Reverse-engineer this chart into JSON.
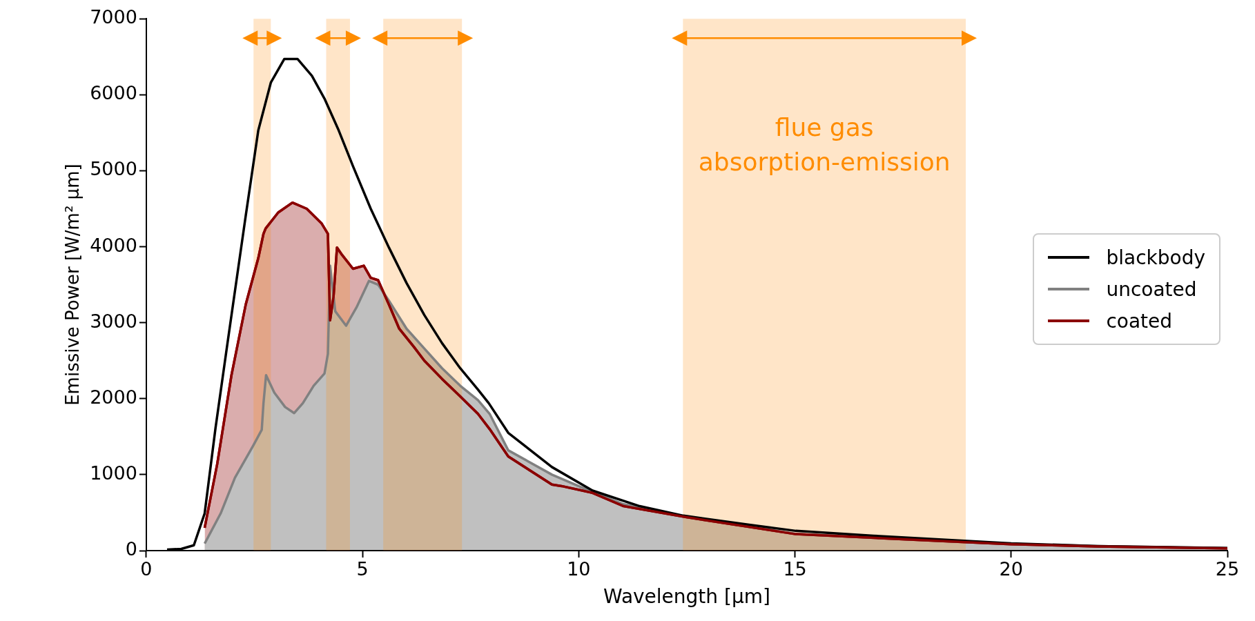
{
  "chart_data": {
    "type": "line",
    "xlabel": "Wavelength [µm]",
    "ylabel": "Emissive Power [W/m² µm]",
    "xlim": [
      0,
      25
    ],
    "ylim": [
      0,
      7000
    ],
    "xticks": [
      0,
      5,
      10,
      15,
      20,
      25
    ],
    "yticks": [
      0,
      1000,
      2000,
      3000,
      4000,
      5000,
      6000,
      7000
    ],
    "grid": false,
    "legend": "right",
    "marker": "none",
    "line_style": "solid",
    "series": [
      {
        "name": "blackbody",
        "type": "line",
        "color": "#000000",
        "x": [
          0.48,
          0.81,
          1.1,
          1.35,
          1.6,
          1.89,
          2.3,
          2.59,
          2.88,
          3.19,
          3.5,
          3.83,
          4.12,
          4.45,
          4.78,
          5.19,
          5.61,
          6.02,
          6.43,
          6.84,
          7.26,
          7.67,
          7.92,
          8.37,
          9.38,
          10.32,
          11.41,
          12.42,
          13.94,
          15.02,
          16.82,
          18.77,
          20,
          22,
          25
        ],
        "values": [
          14,
          23,
          70,
          490,
          1610,
          2780,
          4410,
          5530,
          6160,
          6470,
          6470,
          6250,
          5950,
          5530,
          5060,
          4500,
          3990,
          3520,
          3100,
          2730,
          2400,
          2120,
          1940,
          1550,
          1100,
          790,
          585,
          460,
          340,
          260,
          195,
          135,
          95,
          60,
          35
        ]
      },
      {
        "name": "uncoated",
        "type": "area",
        "color": "#808080",
        "x": [
          1.35,
          1.72,
          2.05,
          2.47,
          2.67,
          2.71,
          2.77,
          2.96,
          3.21,
          3.42,
          3.62,
          3.87,
          4.12,
          4.2,
          4.25,
          4.37,
          4.62,
          4.86,
          5.15,
          5.36,
          5.61,
          6.02,
          6.43,
          6.84,
          7.26,
          7.67,
          7.94,
          8.37,
          9.38,
          10.32,
          11.04,
          12.49,
          15.02,
          18.77,
          20,
          22,
          25
        ],
        "values": [
          93,
          490,
          960,
          1380,
          1590,
          1940,
          2310,
          2080,
          1890,
          1810,
          1940,
          2170,
          2330,
          2590,
          3750,
          3150,
          2960,
          3200,
          3550,
          3500,
          3290,
          2920,
          2660,
          2400,
          2170,
          1980,
          1800,
          1320,
          1000,
          770,
          610,
          445,
          220,
          118,
          88,
          58,
          32
        ]
      },
      {
        "name": "coated",
        "type": "area",
        "color": "#8b0000",
        "x": [
          1.35,
          1.64,
          1.97,
          2.3,
          2.59,
          2.71,
          2.76,
          3.05,
          3.38,
          3.71,
          4.05,
          4.2,
          4.25,
          4.33,
          4.41,
          4.53,
          4.78,
          5.03,
          5.19,
          5.36,
          5.61,
          5.85,
          6.19,
          6.43,
          6.84,
          7.26,
          7.67,
          7.94,
          8.37,
          9.38,
          9.6,
          10.32,
          11.04,
          12.49,
          15.02,
          18.77,
          20,
          22,
          25
        ],
        "values": [
          300,
          1140,
          2310,
          3240,
          3850,
          4170,
          4240,
          4450,
          4580,
          4500,
          4310,
          4170,
          3030,
          3340,
          3990,
          3890,
          3710,
          3750,
          3590,
          3560,
          3240,
          2920,
          2680,
          2500,
          2260,
          2030,
          1800,
          1600,
          1240,
          870,
          850,
          760,
          585,
          440,
          217,
          115,
          85,
          55,
          30
        ]
      }
    ],
    "bands": [
      {
        "axis": "x",
        "from": 2.48,
        "to": 2.88,
        "color": "#ffe5c8"
      },
      {
        "axis": "x",
        "from": 4.16,
        "to": 4.71,
        "color": "#ffe5c8"
      },
      {
        "axis": "x",
        "from": 5.48,
        "to": 7.3,
        "color": "#ffe5c8"
      },
      {
        "axis": "x",
        "from": 12.41,
        "to": 18.95,
        "color": "#ffe5c8",
        "label": "flue gas\nabsorption-emission"
      }
    ]
  }
}
